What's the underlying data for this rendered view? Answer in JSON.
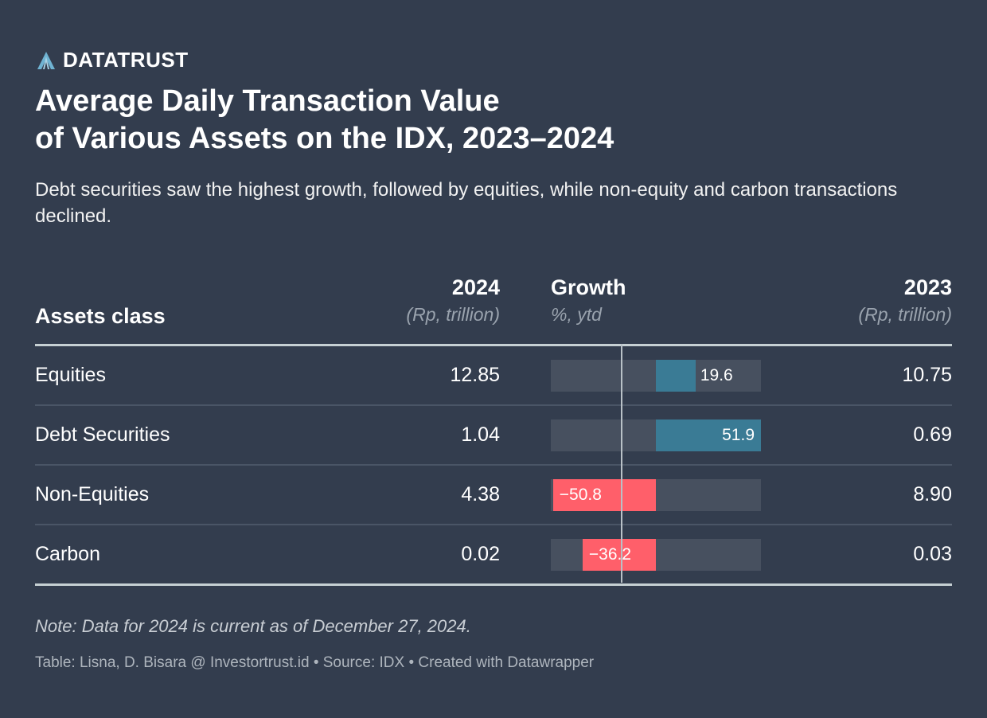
{
  "brand": {
    "name": "DATATRUST",
    "logo_icon": "datatrust-logo-icon",
    "accent": "#6fb3d2"
  },
  "title_line1": "Average Daily Transaction Value",
  "title_line2": "of Various Assets on the IDX, 2023–2024",
  "subtitle": "Debt securities saw the highest growth, followed by equities, while non-equity and carbon transactions declined.",
  "colors": {
    "positive": "#3a7b95",
    "negative": "#ff5f6a",
    "track": "#47505f"
  },
  "chart_data": {
    "type": "table",
    "title": "Average Daily Transaction Value of Various Assets on the IDX, 2023–2024",
    "columns": [
      {
        "key": "asset",
        "label": "Assets class",
        "unit": ""
      },
      {
        "key": "v2024",
        "label": "2024",
        "unit": "(Rp, trillion)"
      },
      {
        "key": "growth",
        "label": "Growth",
        "unit": "%, ytd"
      },
      {
        "key": "v2023",
        "label": "2023",
        "unit": "(Rp, trillion)"
      }
    ],
    "rows": [
      {
        "asset": "Equities",
        "v2024": "12.85",
        "growth": 19.6,
        "growth_label": "19.6",
        "v2023": "10.75"
      },
      {
        "asset": "Debt Securities",
        "v2024": "1.04",
        "growth": 51.9,
        "growth_label": "51.9",
        "v2023": "0.69"
      },
      {
        "asset": "Non-Equities",
        "v2024": "4.38",
        "growth": -50.8,
        "growth_label": "−50.8",
        "v2023": "8.90"
      },
      {
        "asset": "Carbon",
        "v2024": "0.02",
        "growth": -36.2,
        "growth_label": "−36.2",
        "v2023": "0.03"
      }
    ],
    "growth_range": [
      -51.9,
      51.9
    ]
  },
  "note": "Note: Data for 2024 is current as of December 27, 2024.",
  "credit": "Table: Lisna, D. Bisara @ Investortrust.id • Source: IDX • Created with Datawrapper"
}
